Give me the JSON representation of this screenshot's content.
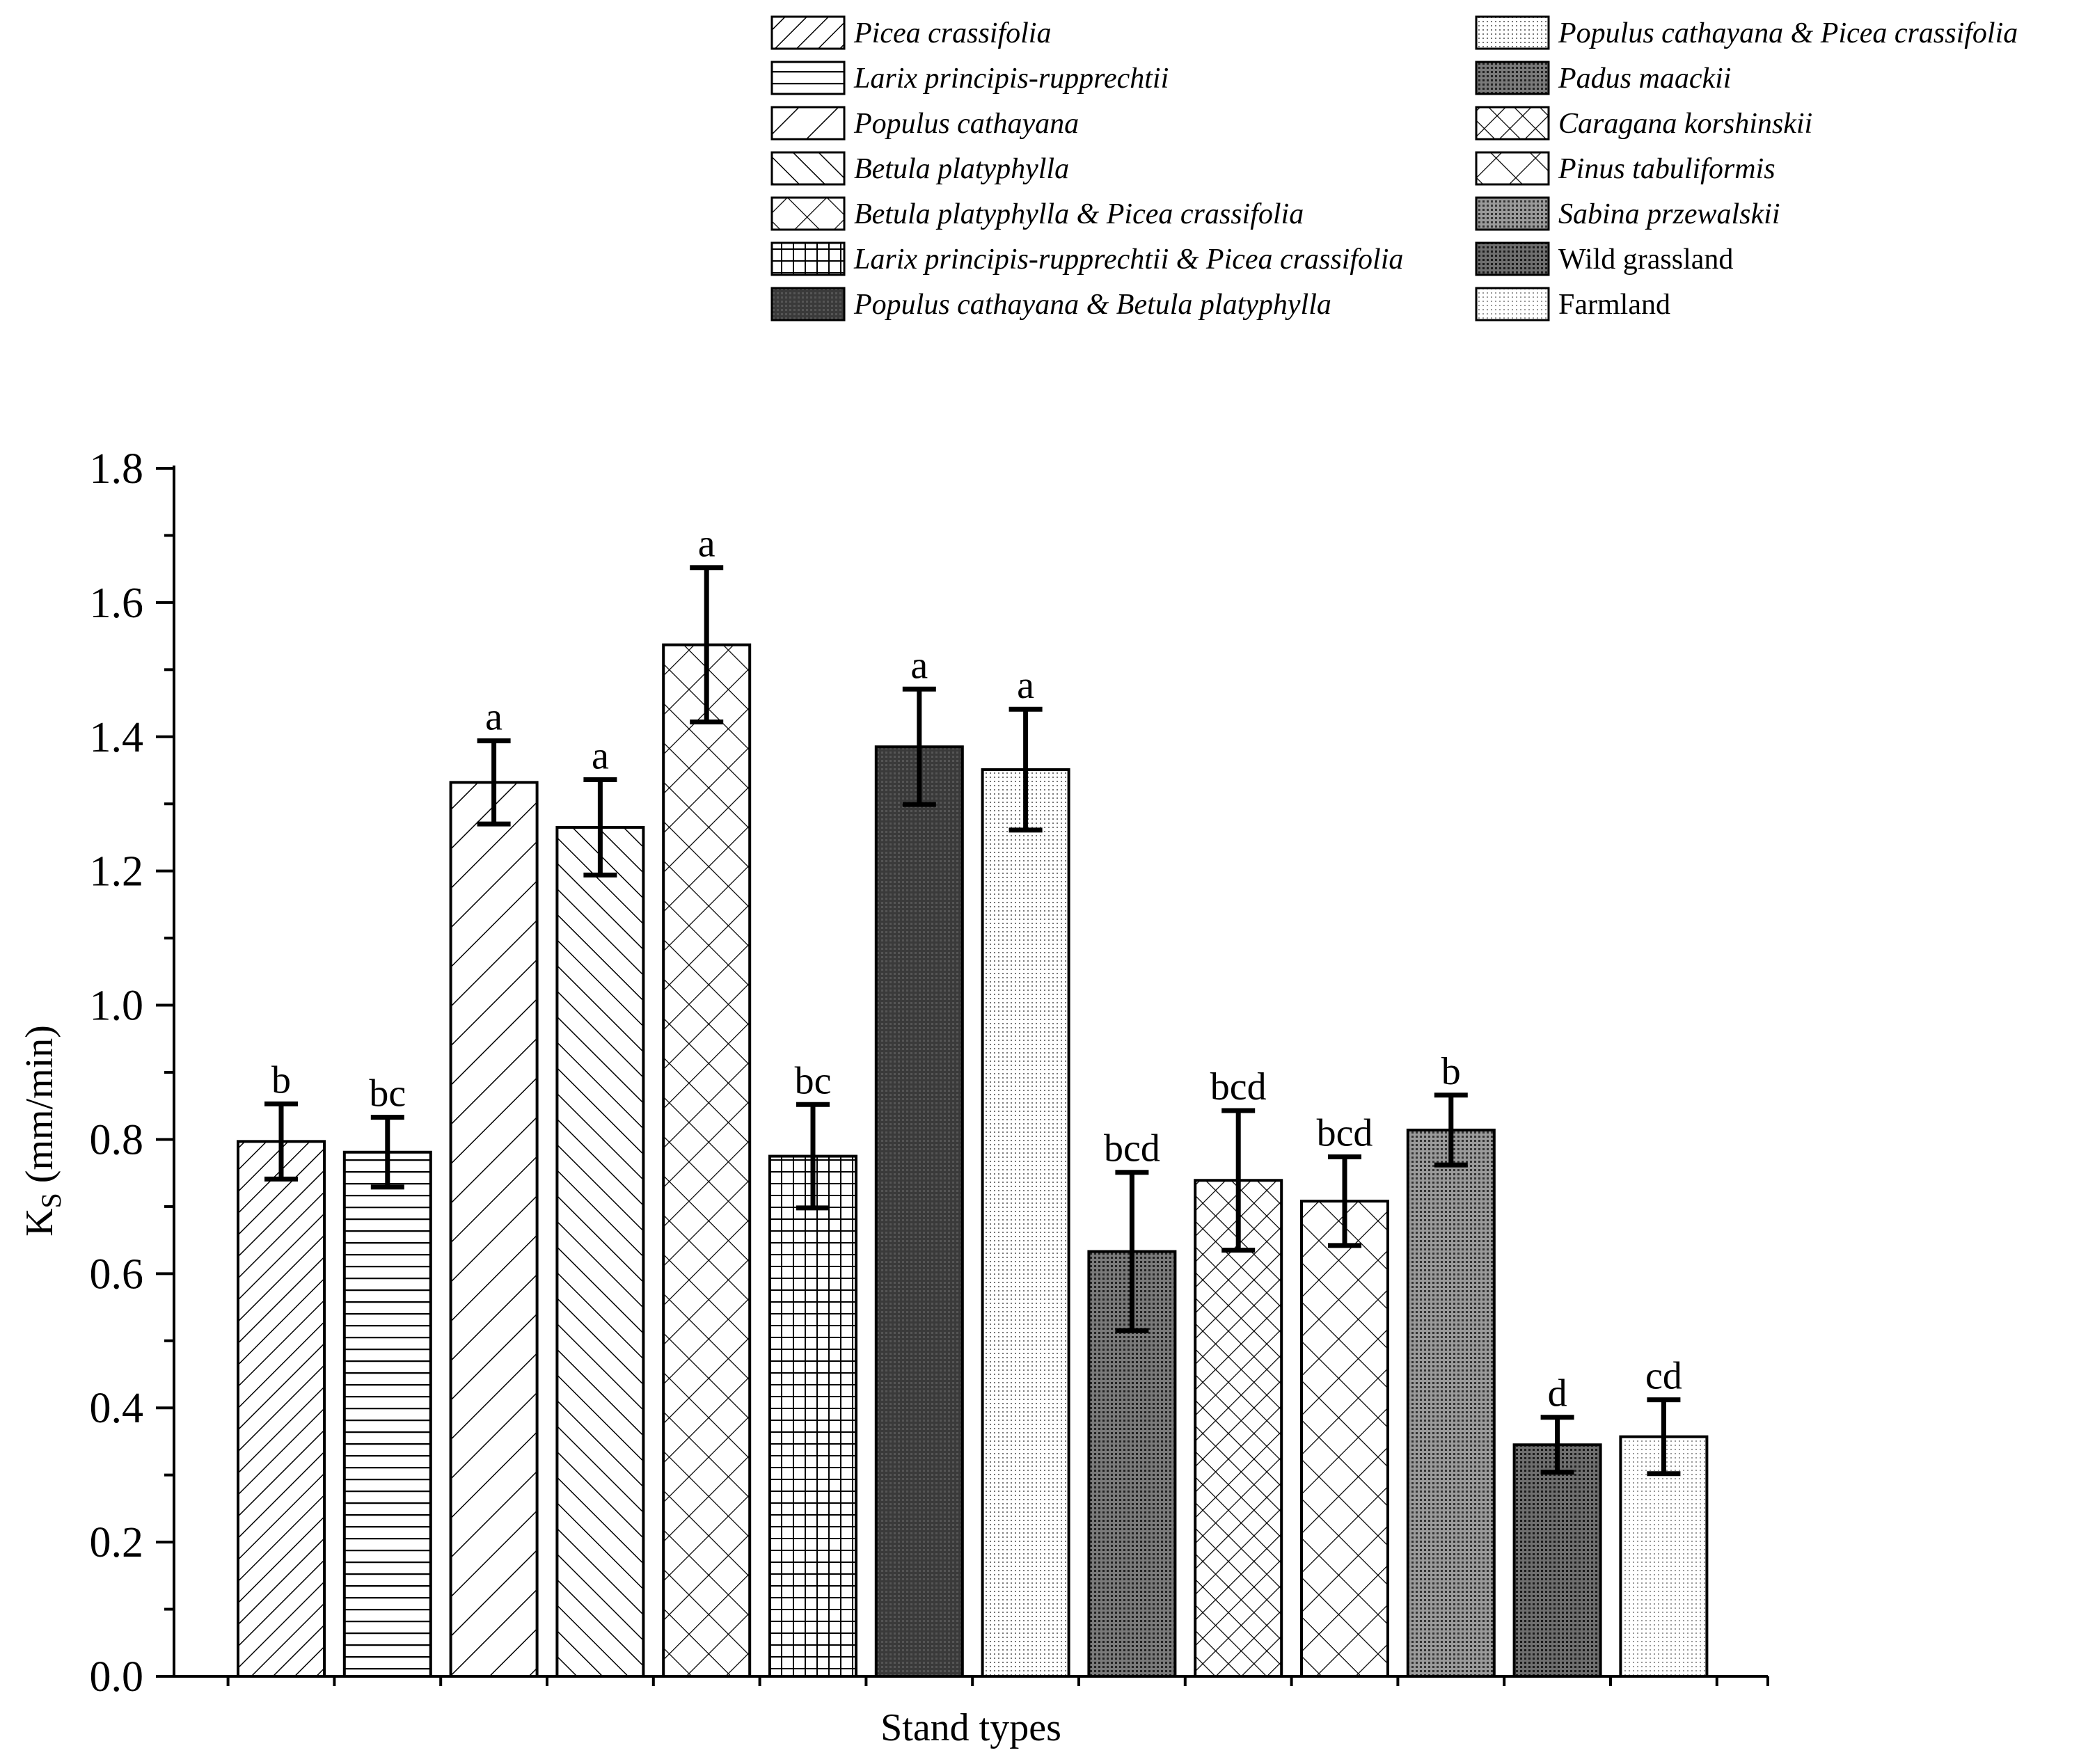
{
  "chart_data": {
    "type": "bar",
    "title": "",
    "xlabel": "Stand types",
    "ylabel": "K",
    "ylabel_subscript": "S",
    "ylabel_units": " (mm/min)",
    "ylim": [
      0,
      1.8
    ],
    "ytick_labels": [
      "0.0",
      "0.2",
      "0.4",
      "0.6",
      "0.8",
      "1.0",
      "1.2",
      "1.4",
      "1.6",
      "1.8"
    ],
    "legend_position": "top",
    "categories": [
      "Picea crassifolia",
      "Larix principis-rupprechtii",
      "Populus cathayana",
      "Betula platyphylla",
      "Betula platyphylla & Picea crassifolia",
      "Larix principis-rupprechtii & Picea crassifolia",
      "Populus cathayana & Betula platyphylla",
      "Populus cathayana & Picea crassifolia",
      "Padus maackii",
      "Caragana korshinskii",
      "Pinus tabuliformis",
      "Sabina przewalskii",
      "Wild grassland",
      "Farmland"
    ],
    "italic": [
      true,
      true,
      true,
      true,
      true,
      true,
      true,
      true,
      true,
      true,
      true,
      true,
      false,
      false
    ],
    "values": [
      0.797,
      0.781,
      1.332,
      1.265,
      1.537,
      0.775,
      1.385,
      1.351,
      0.633,
      0.739,
      0.708,
      0.814,
      0.345,
      0.357
    ],
    "errors": [
      0.056,
      0.052,
      0.062,
      0.071,
      0.115,
      0.077,
      0.086,
      0.09,
      0.118,
      0.104,
      0.066,
      0.052,
      0.041,
      0.055
    ],
    "significance": [
      "b",
      "bc",
      "a",
      "a",
      "a",
      "bc",
      "a",
      "a",
      "bcd",
      "bcd",
      "bcd",
      "b",
      "d",
      "cd"
    ],
    "patterns": [
      "diag-fine",
      "hlines",
      "diag-wide",
      "backdiag",
      "crosshatch",
      "grid",
      "dark",
      "fine-dots",
      "dots-dark",
      "crosshatch-dense",
      "crosshatch",
      "dots-mid",
      "dots-darker",
      "dots-light"
    ]
  }
}
